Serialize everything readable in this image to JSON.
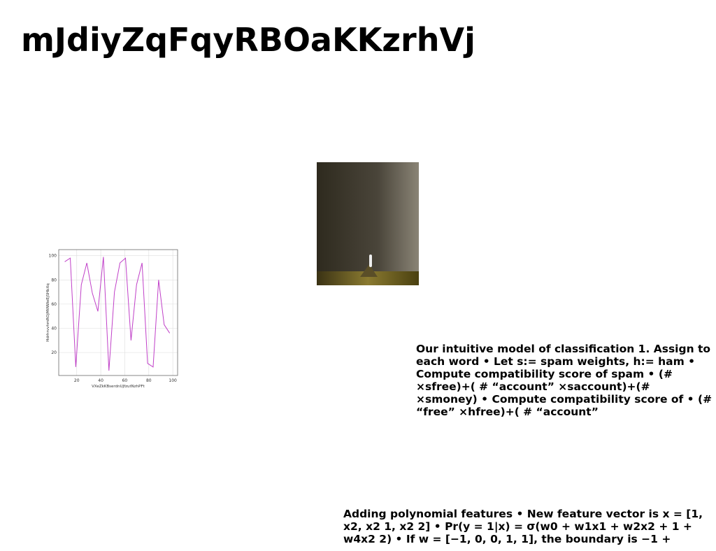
{
  "title": "mJdiyZqFqyRBOaKKzrhVj",
  "text_blocks": [
    "Our intuitive model of classification 1. Assign to each word • Let s:= spam weights, h:= ham • Compute compatibility score of spam • (# ×sfree)+( # “account” ×saccount)+(# ×smoney) • Compute compatibility score of • (# “free” ×hfree)+( # “account”",
    "Adding polynomial features • New feature vector is x = [1, x2, x2 1, x2 2] • Pr(y = 1|x) = σ(w0 + w1x1 + w2x2 + 1 + w4x2 2) • If w = [−1, 0, 0, 1, 1], the boundary is −1 +"
  ],
  "chart_data": {
    "type": "line",
    "xlabel": "VXeZkKBserdnUJfzutNzhPFt",
    "ylabel": "HdrhrvvhmROjMtNWeEjSHbXq",
    "x": [
      10,
      14.6,
      19.2,
      23.8,
      28.4,
      33,
      37.6,
      42.2,
      46.8,
      51.4,
      56,
      60.6,
      65.2,
      69.8,
      74.4,
      79,
      83.6,
      88.2,
      92.8,
      97.4
    ],
    "series": [
      {
        "name": "series",
        "color": "#c040c8",
        "values": [
          95,
          98,
          8,
          76,
          94,
          69,
          54,
          99,
          5,
          70,
          94,
          98,
          30,
          76,
          94,
          11,
          8,
          80,
          43,
          36
        ]
      }
    ],
    "xlim": [
      5,
      104
    ],
    "ylim": [
      1,
      105
    ],
    "xticks": [
      20,
      40,
      60,
      80,
      100
    ],
    "yticks": [
      20,
      40,
      60,
      80,
      100
    ],
    "grid": true
  }
}
